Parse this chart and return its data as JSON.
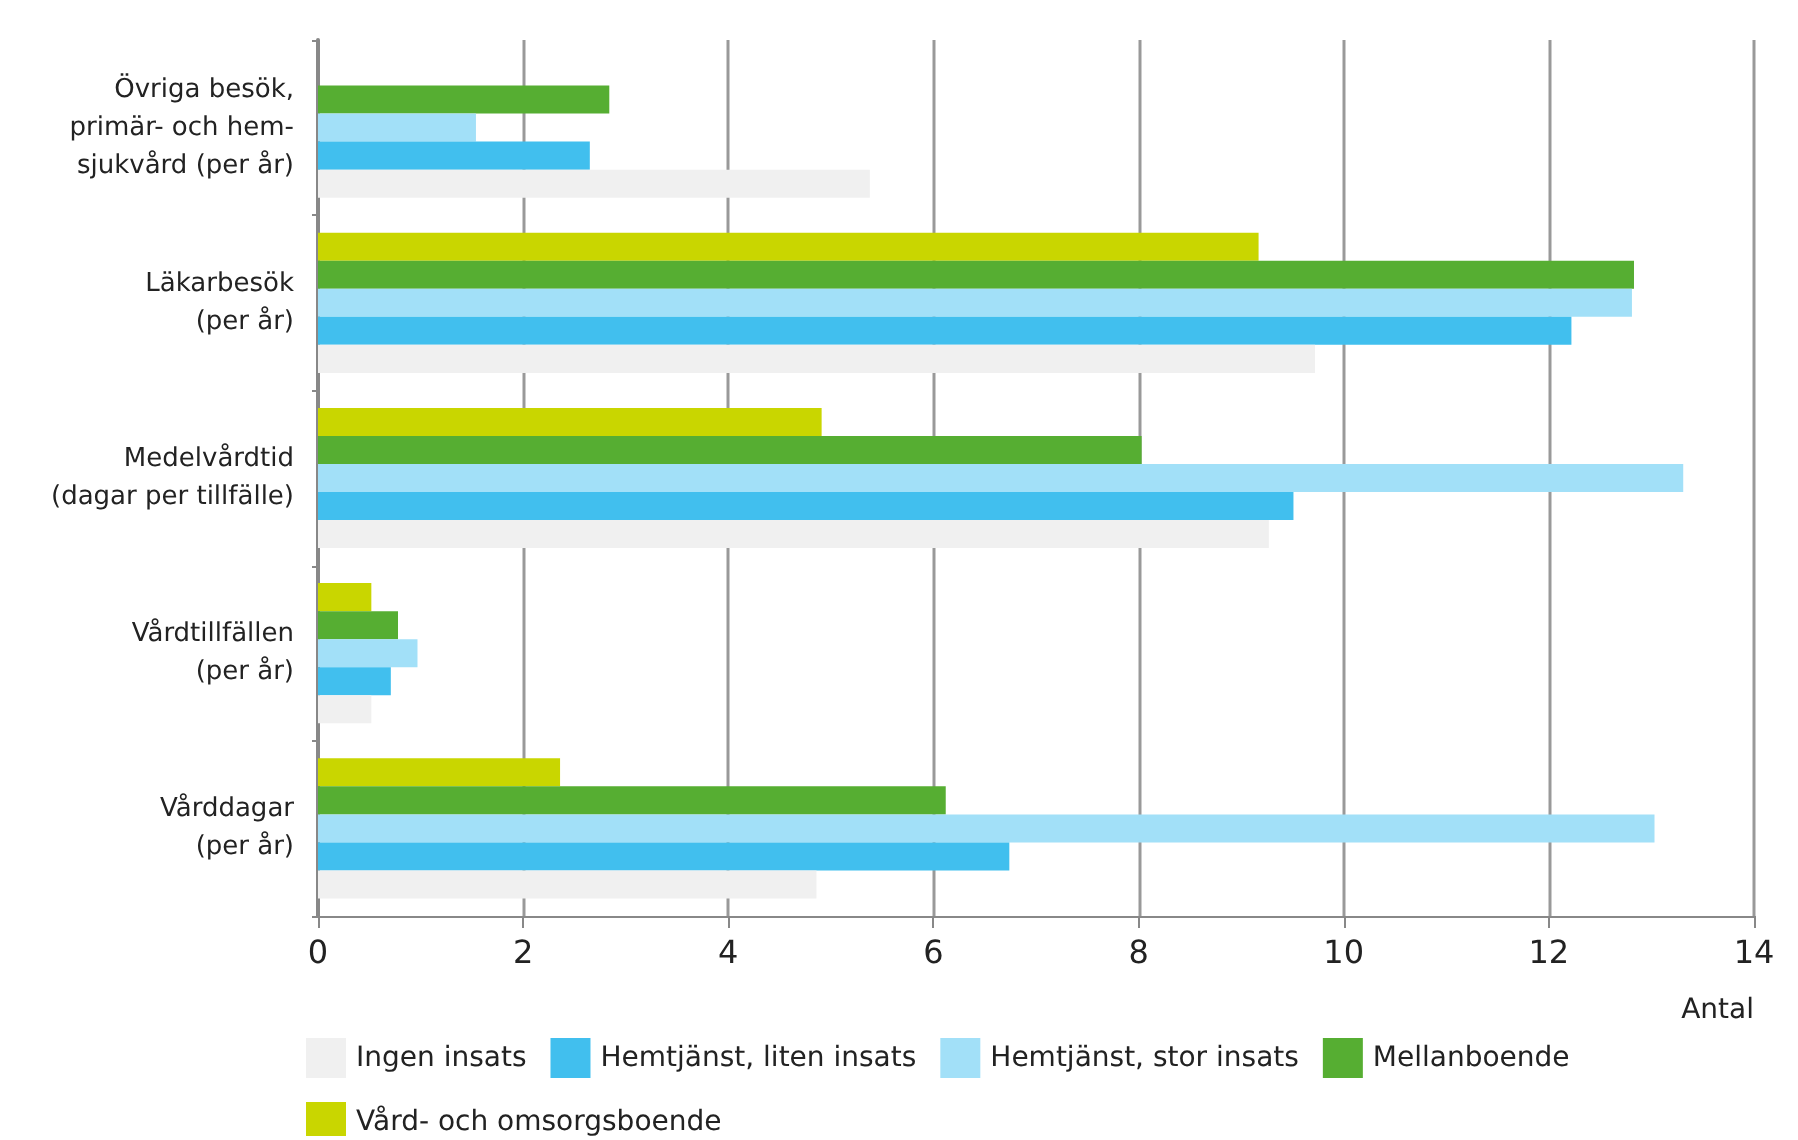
{
  "chart_data": {
    "type": "bar",
    "orientation": "horizontal",
    "xlabel": "Antal",
    "categories": [
      "Övriga besök,\nprimär- och hem-\nsjukvård (per år)",
      "Läkarbesök\n(per år)",
      "Medelvårdtid\n(dagar per tillfälle)",
      "Vårdtillfällen\n(per år)",
      "Vårddagar\n(per år)"
    ],
    "series": [
      {
        "name": "Ingen insats",
        "color": "#f0f0f0",
        "values": [
          5.38,
          9.72,
          9.27,
          0.52,
          4.86
        ]
      },
      {
        "name": "Hemtjänst, liten insats",
        "color": "#41bfee",
        "values": [
          2.65,
          12.22,
          9.51,
          0.71,
          6.74
        ]
      },
      {
        "name": "Hemtjänst, stor insats",
        "color": "#a2e0f8",
        "values": [
          1.54,
          12.81,
          13.31,
          0.97,
          13.03
        ]
      },
      {
        "name": "Mellanboende",
        "color": "#56ae32",
        "values": [
          2.84,
          12.83,
          8.03,
          0.78,
          6.12
        ]
      },
      {
        "name": "Vård- och omsorgsboende",
        "color": "#c9d600",
        "values": [
          null,
          9.17,
          4.91,
          0.52,
          2.36
        ]
      }
    ],
    "xlim": [
      0,
      14
    ],
    "xticks": [
      0,
      2,
      4,
      6,
      8,
      10,
      12,
      14
    ],
    "grid": "x",
    "legend": "bottom left"
  }
}
